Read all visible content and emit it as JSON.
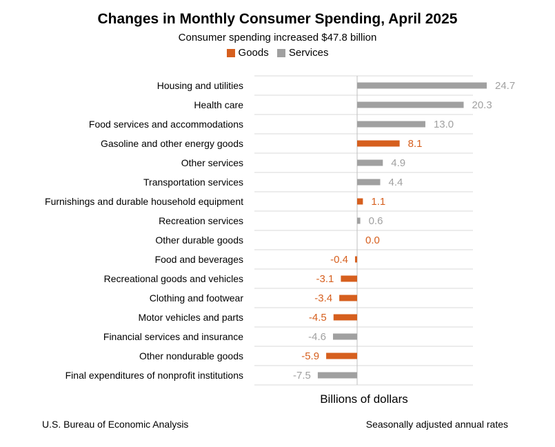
{
  "chart_data": {
    "type": "bar",
    "orientation": "horizontal",
    "title": "Changes in Monthly Consumer Spending, April 2025",
    "subtitle": "Consumer spending increased $47.8 billion",
    "xlabel": "Billions of dollars",
    "legend": [
      {
        "name": "Goods",
        "color": "#d65f1e"
      },
      {
        "name": "Services",
        "color": "#a0a0a0"
      }
    ],
    "legend_position": "top-center",
    "grid": true,
    "xlim": [
      -12,
      30
    ],
    "categories": [
      "Housing and utilities",
      "Health care",
      "Food services and accommodations",
      "Gasoline and other energy goods",
      "Other services",
      "Transportation services",
      "Furnishings and durable household equipment",
      "Recreation services",
      "Other durable goods",
      "Food and beverages",
      "Recreational goods and vehicles",
      "Clothing and footwear",
      "Motor vehicles and parts",
      "Financial services and insurance",
      "Other nondurable goods",
      "Final expenditures of nonprofit institutions"
    ],
    "values": [
      24.7,
      20.3,
      13.0,
      8.1,
      4.9,
      4.4,
      1.1,
      0.6,
      0.0,
      -0.4,
      -3.1,
      -3.4,
      -4.5,
      -4.6,
      -5.9,
      -7.5
    ],
    "labels": [
      "24.7",
      "20.3",
      "13.0",
      "8.1",
      "4.9",
      "4.4",
      "1.1",
      "0.6",
      "0.0",
      "-0.4",
      "-3.1",
      "-3.4",
      "-4.5",
      "-4.6",
      "-5.9",
      "-7.5"
    ],
    "groups": [
      "Services",
      "Services",
      "Services",
      "Goods",
      "Services",
      "Services",
      "Goods",
      "Services",
      "Goods",
      "Goods",
      "Goods",
      "Goods",
      "Goods",
      "Services",
      "Goods",
      "Services"
    ]
  },
  "footer": {
    "source": "U.S. Bureau of Economic Analysis",
    "note": "Seasonally adjusted annual rates"
  }
}
